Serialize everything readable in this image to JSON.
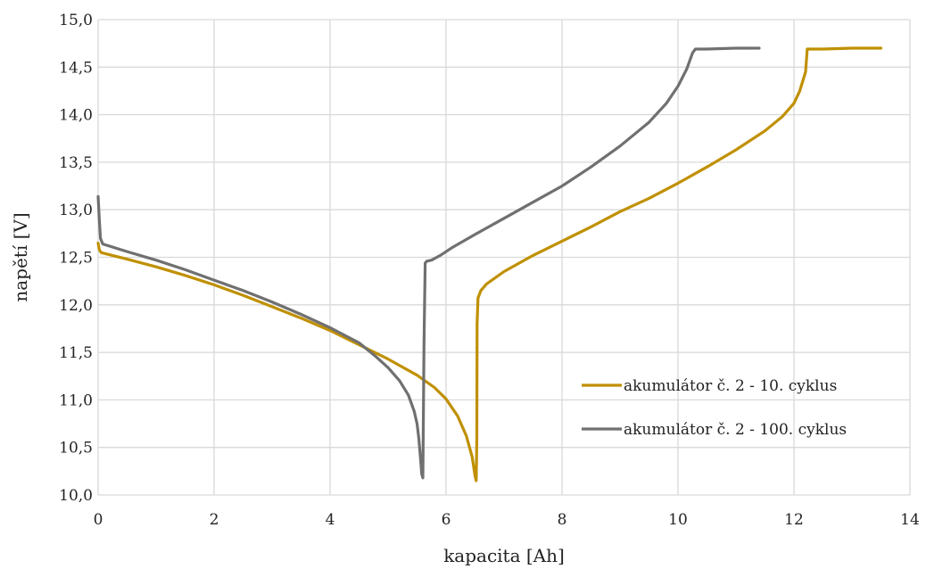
{
  "chart_data": {
    "type": "line",
    "xlabel": "kapacita [Ah]",
    "ylabel": "napětí [V]",
    "xlim": [
      0,
      14
    ],
    "ylim": [
      10.0,
      15.0
    ],
    "xticks": [
      "0",
      "2",
      "4",
      "6",
      "8",
      "10",
      "12",
      "14"
    ],
    "yticks": [
      "10,0",
      "10,5",
      "11,0",
      "11,5",
      "12,0",
      "12,5",
      "13,0",
      "13,5",
      "14,0",
      "14,5",
      "15,0"
    ],
    "grid": true,
    "legend_position": "right",
    "series": [
      {
        "name": "akumulátor č. 2 - 10. cyklus",
        "color": "#c09000",
        "x": [
          0,
          0.02,
          0.05,
          0.5,
          1.0,
          1.5,
          2.0,
          2.5,
          3.0,
          3.5,
          4.0,
          4.5,
          5.0,
          5.5,
          5.8,
          6.0,
          6.2,
          6.35,
          6.45,
          6.5,
          6.52,
          6.53,
          6.535,
          6.55,
          6.6,
          6.7,
          7.0,
          7.5,
          8.0,
          8.5,
          9.0,
          9.5,
          10.0,
          10.5,
          11.0,
          11.5,
          11.8,
          12.0,
          12.1,
          12.2,
          12.23,
          12.3,
          12.5,
          13.0,
          13.5
        ],
        "y": [
          12.65,
          12.58,
          12.55,
          12.48,
          12.4,
          12.31,
          12.21,
          12.1,
          11.98,
          11.86,
          11.73,
          11.58,
          11.43,
          11.26,
          11.13,
          11.01,
          10.83,
          10.62,
          10.4,
          10.2,
          10.15,
          10.6,
          11.8,
          12.07,
          12.15,
          12.22,
          12.35,
          12.52,
          12.67,
          12.82,
          12.98,
          13.12,
          13.28,
          13.45,
          13.63,
          13.83,
          13.98,
          14.12,
          14.25,
          14.45,
          14.69,
          14.69,
          14.69,
          14.7,
          14.7
        ]
      },
      {
        "name": "akumulátor č. 2 - 100. cyklus",
        "color": "#707070",
        "x": [
          0,
          0.02,
          0.04,
          0.08,
          0.5,
          1.0,
          1.5,
          2.0,
          2.5,
          3.0,
          3.5,
          4.0,
          4.5,
          4.8,
          5.0,
          5.2,
          5.35,
          5.45,
          5.5,
          5.53,
          5.55,
          5.57,
          5.58,
          5.6,
          5.62,
          5.64,
          5.67,
          5.75,
          5.9,
          6.1,
          6.5,
          7.0,
          7.5,
          8.0,
          8.5,
          9.0,
          9.5,
          9.8,
          10.0,
          10.15,
          10.25,
          10.3,
          10.5,
          11.0,
          11.4
        ],
        "y": [
          13.14,
          12.9,
          12.7,
          12.64,
          12.56,
          12.47,
          12.37,
          12.26,
          12.15,
          12.03,
          11.9,
          11.76,
          11.6,
          11.45,
          11.34,
          11.2,
          11.05,
          10.88,
          10.75,
          10.6,
          10.45,
          10.3,
          10.22,
          10.18,
          11.6,
          12.44,
          12.46,
          12.47,
          12.52,
          12.6,
          12.74,
          12.91,
          13.08,
          13.25,
          13.45,
          13.67,
          13.92,
          14.12,
          14.3,
          14.48,
          14.65,
          14.69,
          14.69,
          14.7,
          14.7
        ]
      }
    ]
  }
}
